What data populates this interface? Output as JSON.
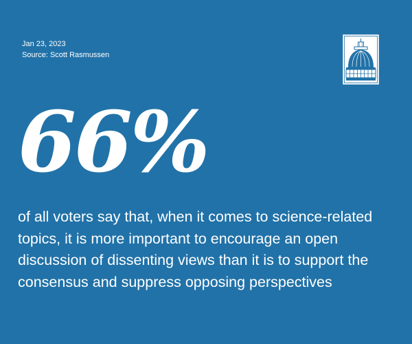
{
  "card": {
    "date": "Jan 23, 2023",
    "source": "Source: Scott Rasmussen",
    "stat_value": "66%",
    "description": "of all voters say that, when it comes to science-related topics, it is more important to encourage an open discussion of dissenting views than it is to support the consensus and suppress opposing perspectives"
  },
  "logo": {
    "icon": "capitol-dome-icon"
  },
  "colors": {
    "background": "#2172a8",
    "text": "#ffffff"
  }
}
